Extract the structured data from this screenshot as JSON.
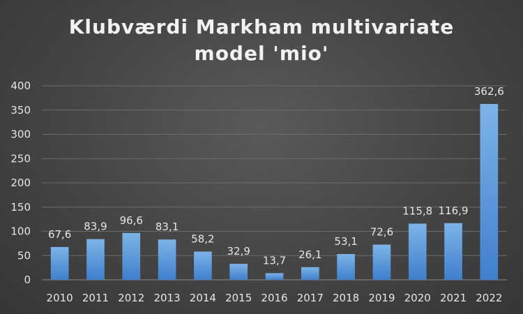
{
  "chart_data": {
    "type": "bar",
    "title": "Klubværdi Markham multivariate model 'mio'",
    "title_lines": [
      "Klubværdi Markham multivariate",
      "model 'mio'"
    ],
    "xlabel": "",
    "ylabel": "",
    "categories": [
      "2010",
      "2011",
      "2012",
      "2013",
      "2014",
      "2015",
      "2016",
      "2017",
      "2018",
      "2019",
      "2020",
      "2021",
      "2022"
    ],
    "values": [
      67.6,
      83.9,
      96.6,
      83.1,
      58.2,
      32.9,
      13.7,
      26.1,
      53.1,
      72.6,
      115.8,
      116.9,
      362.6
    ],
    "value_labels": [
      "67,6",
      "83,9",
      "96,6",
      "83,1",
      "58,2",
      "32,9",
      "13,7",
      "26,1",
      "53,1",
      "72,6",
      "115,8",
      "116,9",
      "362,6"
    ],
    "ylim": [
      0,
      400
    ],
    "yticks": [
      0,
      50,
      100,
      150,
      200,
      250,
      300,
      350,
      400
    ],
    "ytick_labels": [
      "0",
      "50",
      "100",
      "150",
      "200",
      "250",
      "300",
      "350",
      "400"
    ],
    "grid": true,
    "legend": "none",
    "colors": {
      "background": "#404040",
      "bar_top": "#7db3e8",
      "bar_bottom": "#3f80cc",
      "text": "#e6e6e6",
      "grid": "#6c6c6c"
    }
  }
}
